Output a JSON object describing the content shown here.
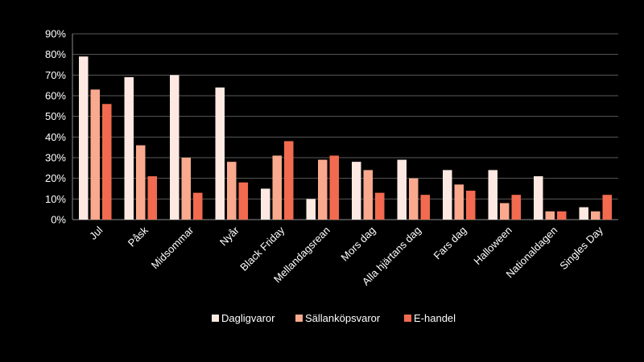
{
  "chart_data": {
    "type": "bar",
    "title": "",
    "xlabel": "",
    "ylabel": "",
    "ylim": [
      0,
      90
    ],
    "y_ticks": [
      0,
      10,
      20,
      30,
      40,
      50,
      60,
      70,
      80,
      90
    ],
    "y_tick_labels": [
      "0%",
      "10%",
      "20%",
      "30%",
      "40%",
      "50%",
      "60%",
      "70%",
      "80%",
      "90%"
    ],
    "grid": true,
    "legend_position": "bottom",
    "categories": [
      "Jul",
      "Påsk",
      "Midsommar",
      "Nyår",
      "Black Friday",
      "Mellandagsrean",
      "Mors dag",
      "Alla hjärtans dag",
      "Fars dag",
      "Halloween",
      "Nationaldagen",
      "Singles Day"
    ],
    "series": [
      {
        "name": "Dagligvaror",
        "color": "#FDE9E2",
        "values": [
          79,
          69,
          70,
          64,
          15,
          10,
          28,
          29,
          24,
          24,
          21,
          6
        ]
      },
      {
        "name": "Sällanköpsvaror",
        "color": "#F8A98E",
        "values": [
          63,
          36,
          30,
          28,
          31,
          29,
          24,
          20,
          17,
          8,
          4,
          4
        ]
      },
      {
        "name": "E-handel",
        "color": "#F26A4F",
        "values": [
          56,
          21,
          13,
          18,
          38,
          31,
          13,
          12,
          14,
          12,
          4,
          12
        ]
      }
    ]
  }
}
